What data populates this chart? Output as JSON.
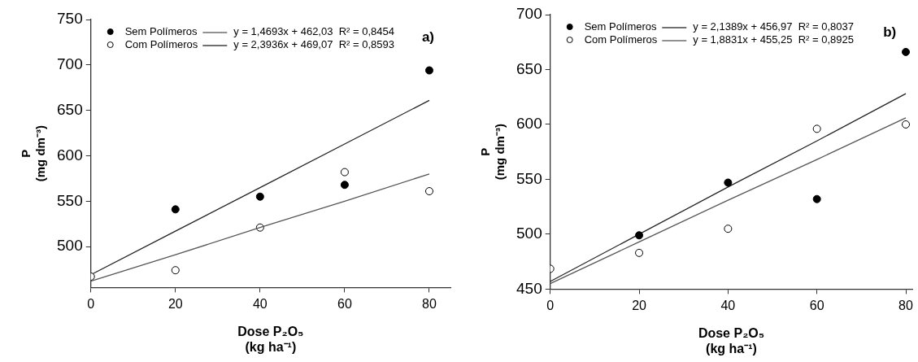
{
  "chart_data": [
    {
      "type": "scatter",
      "annotations": [
        "a)"
      ],
      "xlabel": "Dose P₂O₅\n(kg ha⁻¹)",
      "ylabel": "P\n(mg dm⁻³)",
      "xlim": [
        0,
        85
      ],
      "xticks": [
        0,
        20,
        40,
        60,
        80
      ],
      "ylim": [
        455,
        750
      ],
      "yticks": [
        500,
        550,
        600,
        650,
        700,
        750
      ],
      "marker": "circle",
      "legend": "top left",
      "x": [
        0,
        20,
        40,
        60,
        80
      ],
      "series": [
        {
          "name": "Sem Polímeros",
          "color": "#000000",
          "values": [
            null,
            541,
            555,
            568,
            694
          ]
        },
        {
          "type": "line",
          "name": "y = 1,4693x + 462,03  R² = 0,8454",
          "color": "#555555",
          "marker": "none",
          "values": [
            462,
            491,
            521,
            550,
            580
          ]
        },
        {
          "name": "Com Polímeros",
          "color": "#ffffff",
          "values": [
            467,
            474,
            521,
            582,
            561
          ]
        },
        {
          "type": "line",
          "name": "y = 2,3936x + 469,07  R² = 0,8593",
          "color": "#222222",
          "marker": "none",
          "values": [
            469,
            517,
            565,
            613,
            661
          ]
        }
      ]
    },
    {
      "type": "scatter",
      "annotations": [
        "b)"
      ],
      "xlabel": "Dose P₂O₅\n(kg ha⁻¹)",
      "ylabel": "P\n(mg dm⁻³)",
      "xlim": [
        0,
        81.5
      ],
      "xticks": [
        0,
        20,
        40,
        60,
        80
      ],
      "ylim": [
        450,
        700
      ],
      "yticks": [
        450,
        500,
        550,
        600,
        650,
        700
      ],
      "marker": "circle",
      "legend": "top left",
      "x": [
        0,
        20,
        40,
        60,
        80
      ],
      "series": [
        {
          "name": "Sem Polímeros",
          "color": "#000000",
          "values": [
            null,
            499,
            547,
            532,
            666
          ]
        },
        {
          "type": "line",
          "name": "y = 2,1389x + 456,97  R² = 0,8037",
          "color": "#222222",
          "marker": "none",
          "values": [
            457,
            500,
            543,
            585,
            628
          ]
        },
        {
          "name": "Com Polímeros",
          "color": "#ffffff",
          "values": [
            468.5,
            483,
            505,
            596,
            600
          ]
        },
        {
          "type": "line",
          "name": "y = 1,8831x + 455,25  R² = 0,8925",
          "color": "#555555",
          "marker": "none",
          "values": [
            455,
            493,
            531,
            568,
            606
          ]
        }
      ]
    }
  ]
}
